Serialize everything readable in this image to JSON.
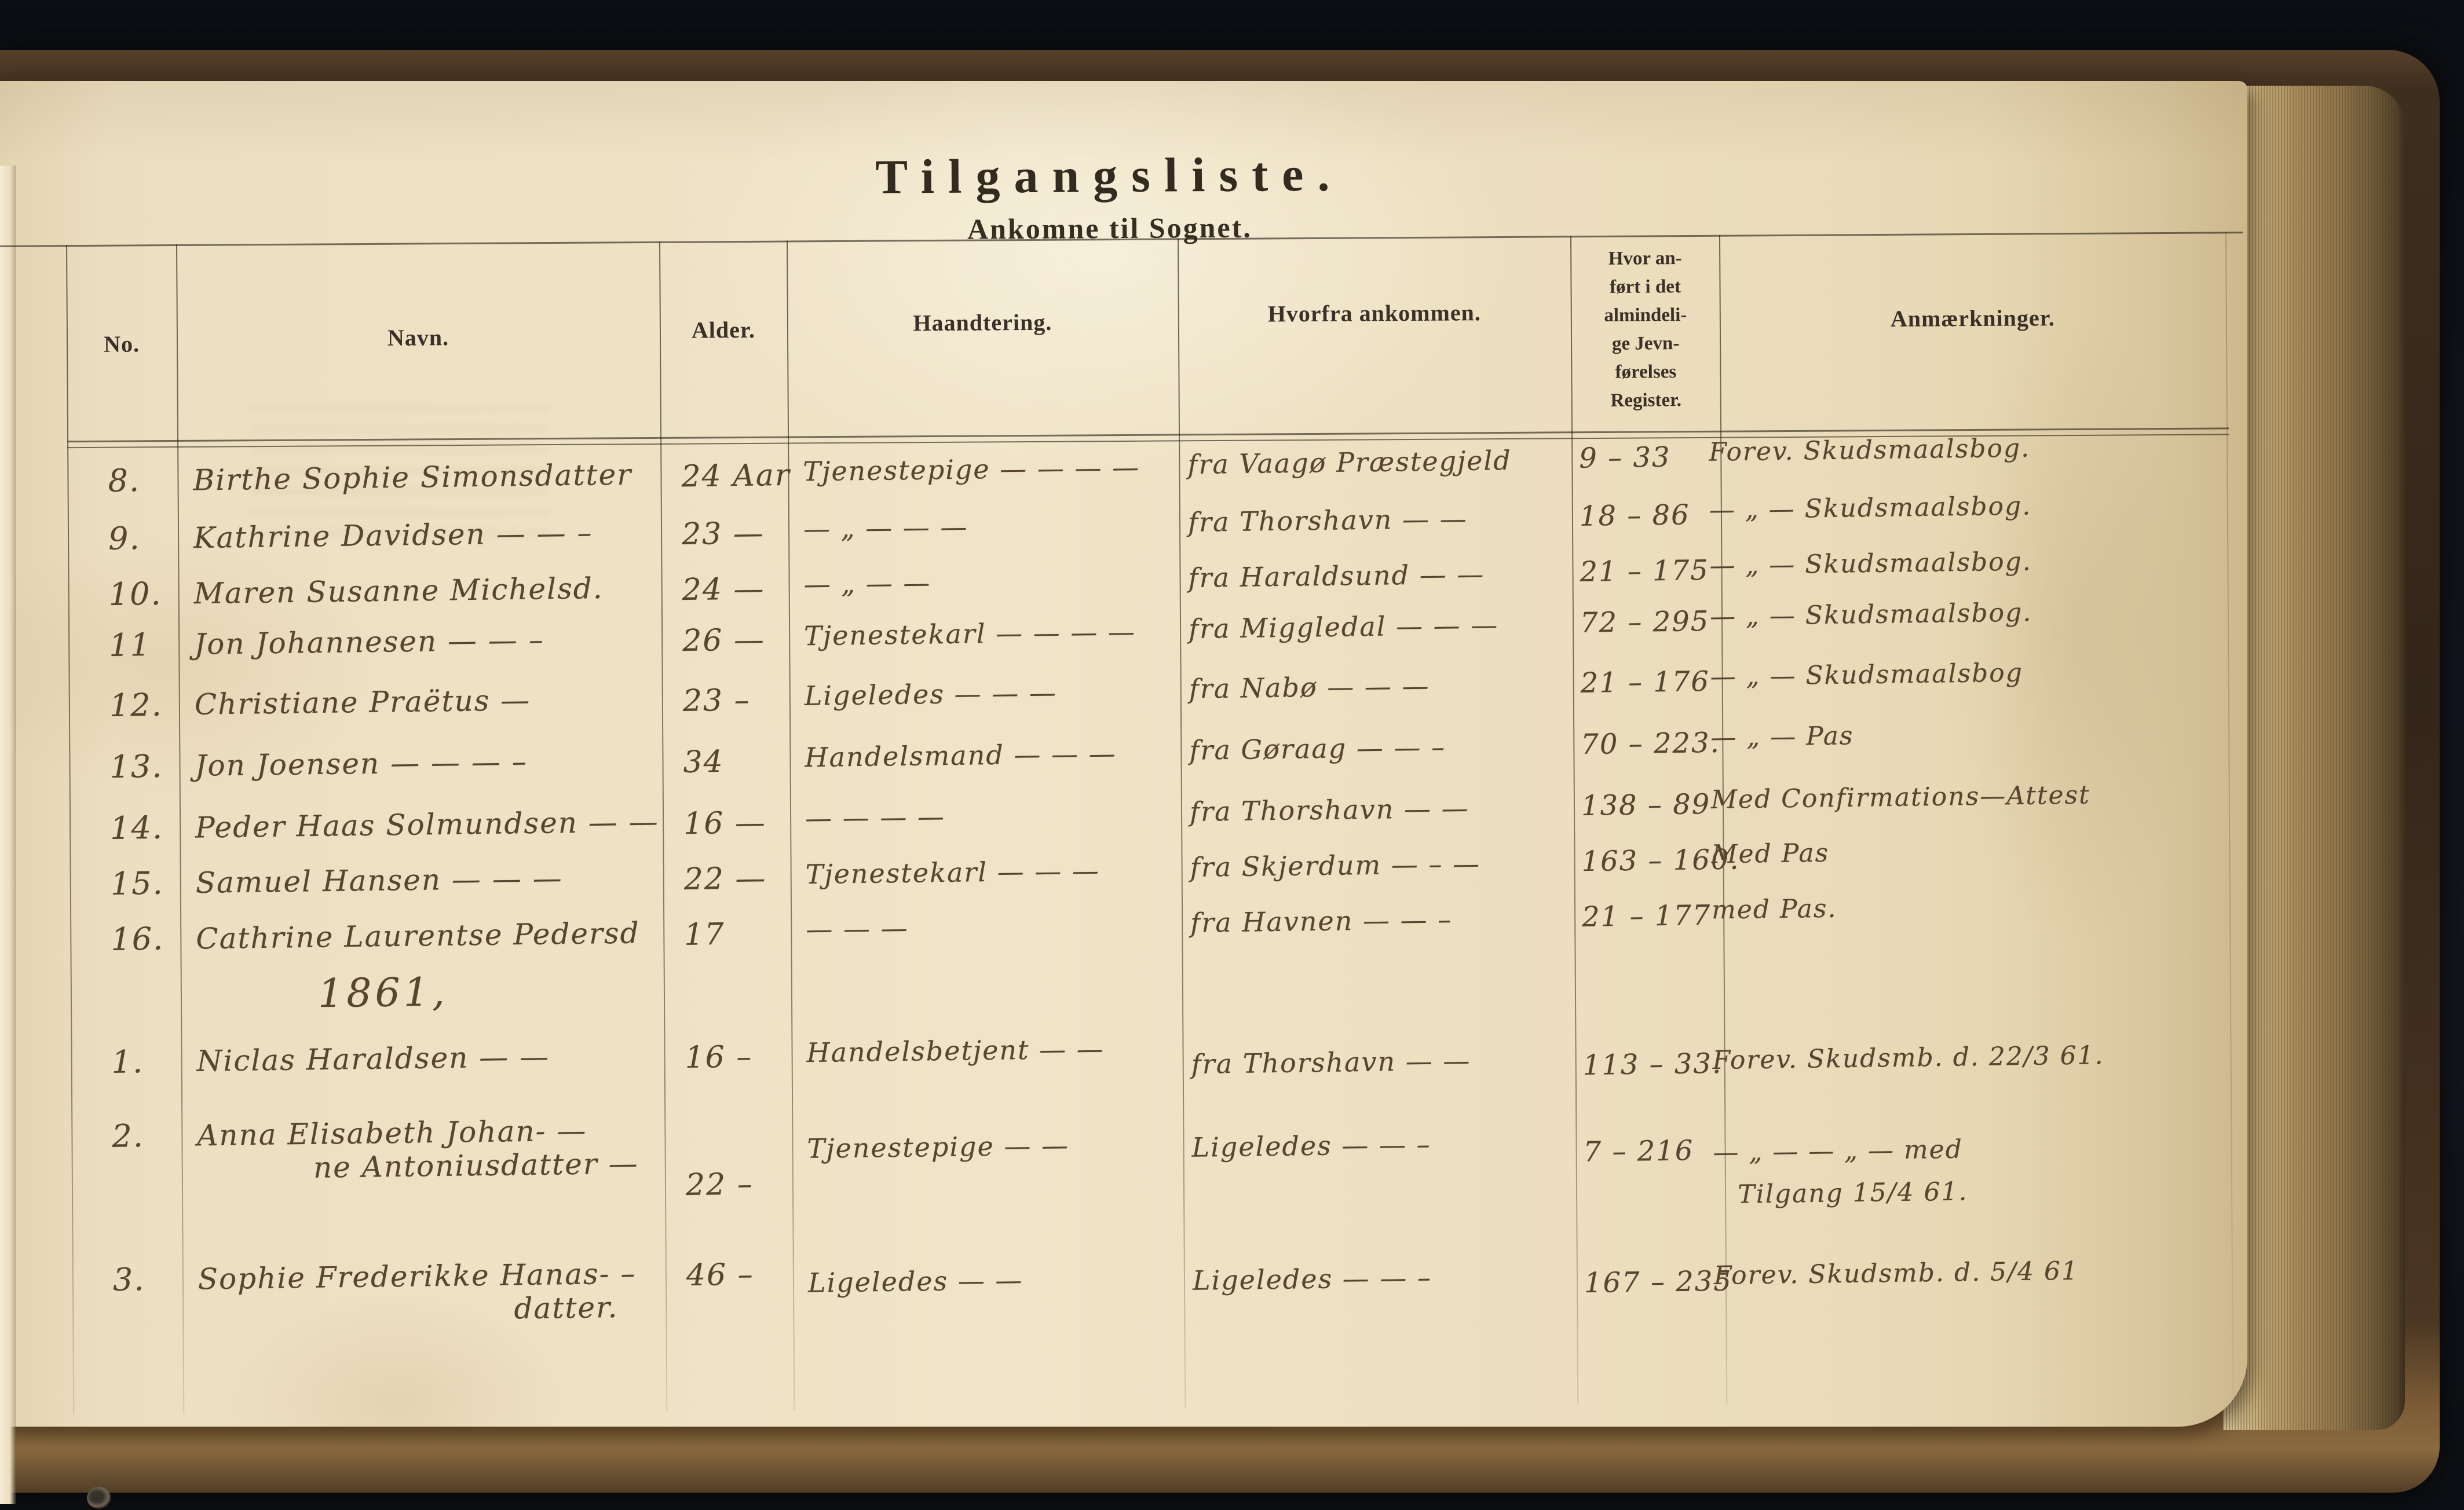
{
  "document": {
    "title": "Tilgangsliste.",
    "subtitle": "Ankomne til Sognet."
  },
  "header": {
    "no": "No.",
    "name": "Navn.",
    "age": "Alder.",
    "occupation": "Haandtering.",
    "from": "Hvorfra ankommen.",
    "register_lines": [
      "Hvor an-",
      "ført i det",
      "almindeli-",
      "ge Jevn-",
      "førelses",
      "Register."
    ],
    "remarks": "Anmærkninger."
  },
  "table": {
    "rows": [
      {
        "no": "8.",
        "name": "Birthe Sophie Simonsdatter",
        "age": "24 Aar",
        "occupation": "Tjenestepige — — — —",
        "from": "fra Vaagø Præstegjeld",
        "register": "9 – 33",
        "remarks": "Forev. Skudsmaalsbog."
      },
      {
        "no": "9.",
        "name": "Kathrine Davidsen — — –",
        "age": "23 —",
        "occupation": "— „ — — —",
        "from": "fra Thorshavn — —",
        "register": "18 – 86",
        "remarks": "— „ — Skudsmaalsbog."
      },
      {
        "no": "10.",
        "name": "Maren Susanne Michelsd.",
        "age": "24 —",
        "occupation": "— „ — —",
        "from": "fra Haraldsund — —",
        "register": "21 – 175",
        "remarks": "— „ — Skudsmaalsbog."
      },
      {
        "no": "11",
        "name": "Jon Johannesen — — –",
        "age": "26 —",
        "occupation": "Tjenestekarl — — — —",
        "from": "fra Miggledal — — —",
        "register": "72 – 295",
        "remarks": "— „ — Skudsmaalsbog."
      },
      {
        "no": "12.",
        "name": "Christiane Praëtus —",
        "age": "23 –",
        "occupation": "Ligeledes — — —",
        "from": "fra Nabø — — —",
        "register": "21 – 176",
        "remarks": "— „ — Skudsmaalsbog"
      },
      {
        "no": "13.",
        "name": "Jon Joensen — — — –",
        "age": "34",
        "occupation": "Handelsmand — — —",
        "from": "fra Gøraag — — –",
        "register": "70 – 223.",
        "remarks": "— „ — Pas"
      },
      {
        "no": "14.",
        "name": "Peder Haas Solmundsen — —",
        "age": "16 —",
        "occupation": "— — — —",
        "from": "fra Thorshavn — —",
        "register": "138 – 89",
        "remarks": "Med Confirmations—Attest"
      },
      {
        "no": "15.",
        "name": "Samuel Hansen — — —",
        "age": "22 —",
        "occupation": "Tjenestekarl — — —",
        "from": "fra Skjerdum — – —",
        "register": "163 – 160.",
        "remarks": "Med Pas"
      },
      {
        "no": "16.",
        "name": "Cathrine Laurentse Pedersd",
        "age": "17",
        "occupation": "— — —",
        "from": "fra Havnen — — –",
        "register": "21 – 177",
        "remarks": "med Pas."
      },
      {
        "year": "1861,"
      },
      {
        "no": "1.",
        "name": "Niclas Haraldsen — —",
        "age": "16 –",
        "occupation": "Handelsbetjent — —",
        "from": "fra Thorshavn — —",
        "register": "113 – 33.",
        "remarks": "Forev. Skudsmb. d. 22/3 61."
      },
      {
        "no": "2.",
        "name": "Anna Elisabeth Johan- —",
        "name2": "ne Antoniusdatter —",
        "age": "22 –",
        "occupation": "Tjenestepige — —",
        "from": "Ligeledes — — –",
        "register": "7 – 216",
        "remarks": "— „ — — „ — med",
        "remarks2": "Tilgang 15/4 61."
      },
      {
        "no": "3.",
        "name": "Sophie Frederikke Hanas- –",
        "name2": "datter.",
        "age": "46 –",
        "occupation": "Ligeledes — —",
        "from": "Ligeledes — — –",
        "register": "167 – 235",
        "remarks": "Forev. Skudsmb. d. 5/4 61"
      }
    ]
  }
}
